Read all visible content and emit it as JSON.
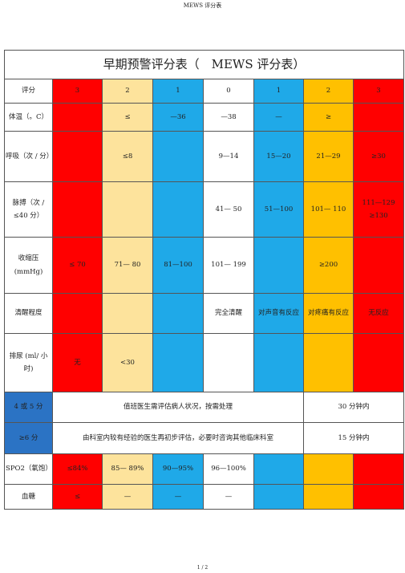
{
  "header": {
    "page_title": "MEWS 评分表"
  },
  "table": {
    "title": "早期预警评分表（　MEWS 评分表）",
    "rows": [
      [
        "评分",
        "3",
        "2",
        "1",
        "0",
        "1",
        "2",
        "3"
      ],
      [
        "体温（。C）",
        null,
        "≤",
        "—36",
        "—38",
        "—",
        "≥",
        null
      ],
      [
        "呼吸（次 / 分）",
        null,
        "≤8",
        null,
        "9—14",
        "15—20",
        "21—29",
        "≥30"
      ],
      [
        "脉搏（次 / ≤40 分）",
        null,
        null,
        null,
        "41— 50",
        "51—100",
        "101— 110",
        "111—129 ≥130"
      ],
      [
        "收缩压 (mmHg)",
        "≤ 70",
        "71— 80",
        "81—100",
        "101— 199",
        null,
        "≥200",
        null
      ],
      [
        "清醒程度",
        null,
        null,
        null,
        "完全清醒",
        "对声音有反应",
        "对疼痛有反应",
        "无反应"
      ],
      [
        "排尿 (ml/ 小时)",
        "无",
        "<30",
        null,
        null,
        null,
        null,
        null
      ]
    ],
    "action_rows": [
      [
        "4 或 5 分",
        "值班医生需评估病人状况，按需处理",
        "30 分钟内"
      ],
      [
        "≥6 分",
        "由科室内较有经验的医生再初步评估，必要时咨询其他临床科室",
        "15 分钟内"
      ]
    ],
    "extra_rows": [
      [
        "SPO2（氧饱）",
        "≤84%",
        "85— 89%",
        "90—95%",
        "96—100%",
        null,
        null,
        null
      ],
      [
        "血糖",
        "≤",
        "—",
        "—",
        "—",
        null,
        null,
        null
      ]
    ]
  },
  "footer": {
    "page_number": "1 / 2"
  }
}
